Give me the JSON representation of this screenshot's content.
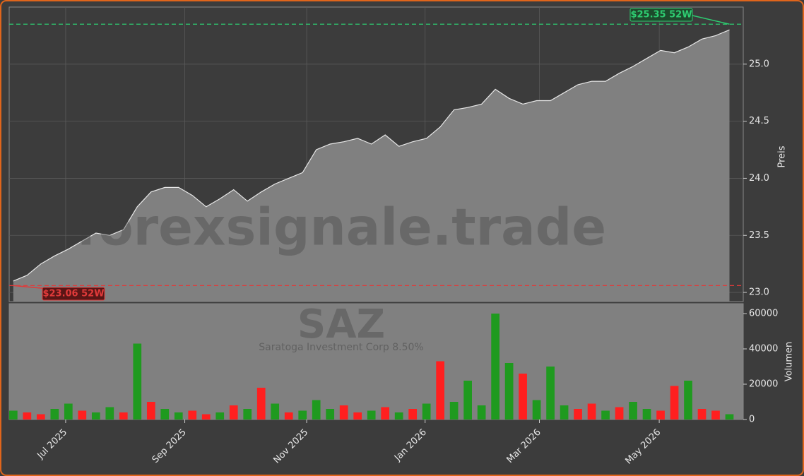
{
  "chart_data": {
    "type": "area",
    "watermark": "forexsignale.trade",
    "title": "SAZ",
    "subtitle": "Saratoga Investment Corp 8.50%",
    "ylabel": "Preis",
    "y2label": "Volumen",
    "x": [
      0,
      1,
      2,
      3,
      4,
      5,
      6,
      7,
      8,
      9,
      10,
      11,
      12,
      13,
      14,
      15,
      16,
      17,
      18,
      19,
      20,
      21,
      22,
      23,
      24,
      25,
      26,
      27,
      28,
      29,
      30,
      31,
      32,
      33,
      34,
      35,
      36,
      37,
      38,
      39,
      40,
      41,
      42,
      43,
      44,
      45,
      46,
      47,
      48,
      49,
      50,
      51,
      52
    ],
    "values": [
      23.1,
      23.15,
      23.25,
      23.32,
      23.38,
      23.45,
      23.52,
      23.5,
      23.55,
      23.75,
      23.88,
      23.92,
      23.92,
      23.85,
      23.75,
      23.82,
      23.9,
      23.8,
      23.88,
      23.95,
      24.0,
      24.05,
      24.25,
      24.3,
      24.32,
      24.35,
      24.3,
      24.38,
      24.28,
      24.32,
      24.35,
      24.45,
      24.6,
      24.62,
      24.65,
      24.78,
      24.7,
      24.65,
      24.68,
      24.68,
      24.75,
      24.82,
      24.85,
      24.85,
      24.92,
      24.98,
      25.05,
      25.12,
      25.1,
      25.15,
      25.22,
      25.25,
      25.3
    ],
    "color": "#808080",
    "xlim": [
      -0.3,
      53
    ],
    "xticks": [
      {
        "value": 3.8,
        "label": "Jul 2025"
      },
      {
        "value": 12.45,
        "label": "Sep 2025"
      },
      {
        "value": 21.3,
        "label": "Nov 2025"
      },
      {
        "value": 29.9,
        "label": "Jan 2026"
      },
      {
        "value": 38.2,
        "label": "Mar 2026"
      },
      {
        "value": 46.9,
        "label": "May 2026"
      }
    ],
    "ylim": [
      22.92,
      25.5
    ],
    "yticks": [
      {
        "value": 23,
        "label": "23.0"
      },
      23.5,
      {
        "value": 24,
        "label": "24.0"
      },
      24.5,
      {
        "value": 25,
        "label": "25.0"
      }
    ],
    "grid": true,
    "high": {
      "value": 25.35,
      "label": "$25.35 52W",
      "color": "#2ecc71"
    },
    "low": {
      "value": 23.06,
      "label": "$23.06 52W",
      "color": "#e03a3a"
    },
    "volume": [
      5000,
      4000,
      3000,
      6000,
      9000,
      5000,
      4000,
      7000,
      4000,
      43000,
      10000,
      6000,
      4000,
      5000,
      3000,
      4000,
      8000,
      6000,
      18000,
      9000,
      4000,
      5000,
      11000,
      6000,
      8000,
      4000,
      5000,
      7000,
      4000,
      6000,
      9000,
      33000,
      10000,
      22000,
      8000,
      60000,
      32000,
      26000,
      11000,
      30000,
      8000,
      6000,
      9000,
      5000,
      7000,
      10000,
      6000,
      5000,
      19000,
      22000,
      6000,
      5000,
      3000
    ],
    "volume_colors": [
      "#1f9a1f",
      "#ff1f1f",
      "#ff1f1f",
      "#1f9a1f",
      "#1f9a1f",
      "#ff1f1f",
      "#1f9a1f",
      "#1f9a1f",
      "#ff1f1f",
      "#1f9a1f",
      "#ff1f1f",
      "#1f9a1f",
      "#1f9a1f",
      "#ff1f1f",
      "#ff1f1f",
      "#1f9a1f",
      "#ff1f1f",
      "#1f9a1f",
      "#ff1f1f",
      "#1f9a1f",
      "#ff1f1f",
      "#1f9a1f",
      "#1f9a1f",
      "#1f9a1f",
      "#ff1f1f",
      "#ff1f1f",
      "#1f9a1f",
      "#ff1f1f",
      "#1f9a1f",
      "#ff1f1f",
      "#1f9a1f",
      "#ff1f1f",
      "#1f9a1f",
      "#1f9a1f",
      "#1f9a1f",
      "#1f9a1f",
      "#1f9a1f",
      "#ff1f1f",
      "#1f9a1f",
      "#1f9a1f",
      "#1f9a1f",
      "#ff1f1f",
      "#ff1f1f",
      "#1f9a1f",
      "#ff1f1f",
      "#1f9a1f",
      "#1f9a1f",
      "#ff1f1f",
      "#ff1f1f",
      "#1f9a1f",
      "#ff1f1f",
      "#ff1f1f",
      "#1f9a1f"
    ],
    "y2lim": [
      0,
      65600
    ],
    "y2ticks": [
      0,
      20000,
      40000,
      60000
    ]
  }
}
